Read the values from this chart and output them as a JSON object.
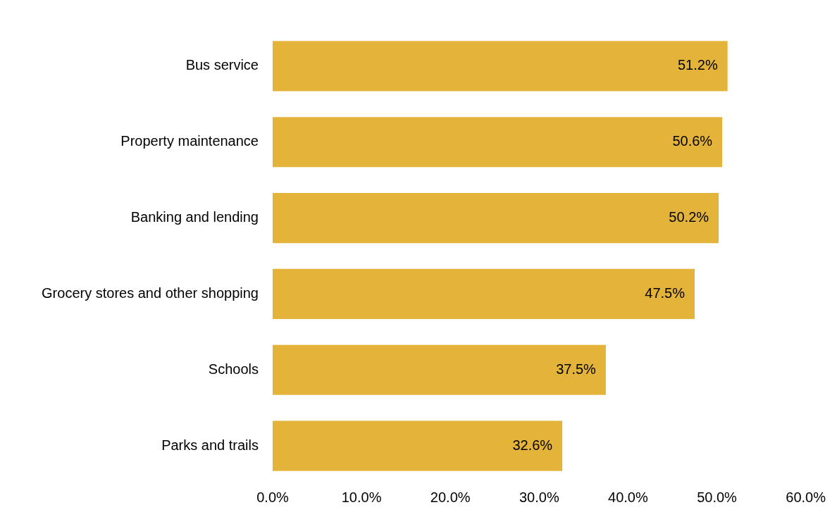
{
  "chart_data": {
    "type": "bar",
    "orientation": "horizontal",
    "categories": [
      "Bus service",
      "Property maintenance",
      "Banking and lending",
      "Grocery stores and other shopping",
      "Schools",
      "Parks and trails"
    ],
    "values": [
      51.2,
      50.6,
      50.2,
      47.5,
      37.5,
      32.6
    ],
    "value_labels": [
      "51.2%",
      "50.6%",
      "50.2%",
      "47.5%",
      "37.5%",
      "32.6%"
    ],
    "color": "#e4b43a",
    "xlim": [
      0,
      60
    ],
    "xticks": [
      {
        "value": 0,
        "label": "0.0%"
      },
      {
        "value": 10,
        "label": "10.0%"
      },
      {
        "value": 20,
        "label": "20.0%"
      },
      {
        "value": 30,
        "label": "30.0%"
      },
      {
        "value": 40,
        "label": "40.0%"
      },
      {
        "value": 50,
        "label": "50.0%"
      },
      {
        "value": 60,
        "label": "60.0%"
      }
    ],
    "grid": false,
    "legend": false
  }
}
